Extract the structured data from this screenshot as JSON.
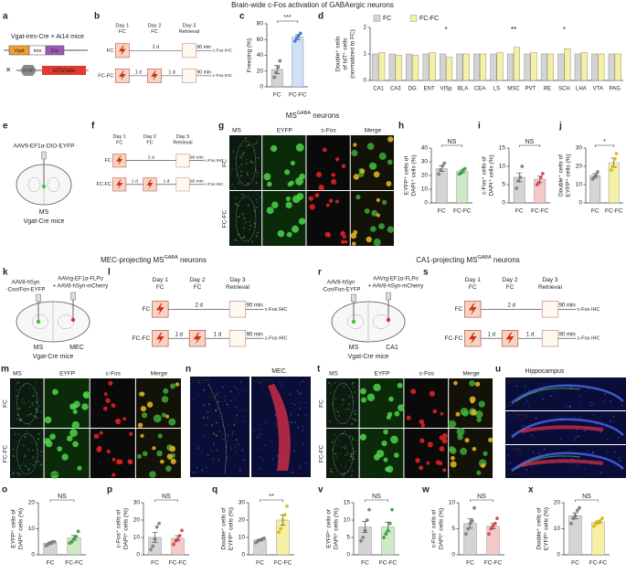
{
  "headers": [
    {
      "text": "Brain-wide c-Fos activation of GABAergic neurons"
    },
    {
      "text": "MS",
      "sup": "GABA",
      "rest": " neurons"
    },
    {
      "text": "MEC-projecting MS",
      "sup": "GABA",
      "rest": " neurons"
    },
    {
      "text": "CA1-projecting MS",
      "sup": "GABA",
      "rest": " neurons"
    }
  ],
  "schematics": {
    "a": {
      "letter": "a",
      "title": "Vgat-ires-Cre × Ai14 mice",
      "parts": [
        "Vgat",
        "ires",
        "Cre"
      ],
      "cross": "×",
      "stop": "STOP",
      "reporter": "tdTomato"
    },
    "e": {
      "letter": "e",
      "virus": [
        "AAV9-EF1α-DIO-EYFP"
      ],
      "sites": [
        "MS"
      ],
      "mice": "Vgat-Cre mice"
    },
    "k": {
      "letter": "k",
      "virus": [
        "AAV8-hSyn",
        "-Con/Fon-EYFP"
      ],
      "virus2": [
        "AAVrg-EF1α-FLPo",
        "+ AAV8-hSyn-mCherry"
      ],
      "sites": [
        "MS",
        "MEC"
      ],
      "mice": "Vgat-Cre mice"
    },
    "r": {
      "letter": "r",
      "virus": [
        "AAV8-hSyn",
        "-Con/Fon-EYFP"
      ],
      "virus2": [
        "AAVrg-EF1α-FLPo",
        "+ AAV8-hSyn-mCherry"
      ],
      "sites": [
        "MS",
        "CA1"
      ],
      "mice": "Vgat-Cre mice"
    }
  },
  "protocol_panels": [
    "b",
    "f",
    "l",
    "s"
  ],
  "protocol": {
    "days": [
      [
        "Day 1",
        "FC"
      ],
      [
        "Day 2",
        "FC"
      ],
      [
        "Day 3",
        "Retrieval"
      ]
    ],
    "groups": [
      "FC",
      "FC-FC"
    ],
    "interval": "2 d",
    "short_interval": "1 d",
    "delay": "90 min",
    "assay": "c-Fos IHC"
  },
  "micrographs": {
    "g": {
      "letter": "g",
      "columns": [
        "MS",
        "EYFP",
        "c-Fos",
        "Merge"
      ],
      "rows": [
        "FC",
        "FC-FC"
      ],
      "scales": [
        "100 μm",
        "20 μm"
      ]
    },
    "m": {
      "letter": "m",
      "columns": [
        "MS",
        "EYFP",
        "c-Fos",
        "Merge"
      ],
      "rows": [
        "FC",
        "FC-FC"
      ],
      "scales": [
        "100 μm",
        "20 μm"
      ]
    },
    "t": {
      "letter": "t",
      "columns": [
        "MS",
        "EYFP",
        "c-Fos",
        "Merge"
      ],
      "rows": [
        "FC",
        "FC-FC"
      ],
      "scales": [
        "100 μm",
        "20 μm"
      ]
    },
    "n": {
      "letter": "n",
      "title": "MEC",
      "channels": [
        "EYFP",
        "mCherry"
      ],
      "regions": [
        "cc",
        "MEC"
      ],
      "scale": "500 μm"
    },
    "u": {
      "letter": "u",
      "title": "Hippocampus",
      "channels": [
        "EYFP",
        "mCherry",
        "Merge"
      ],
      "regions": [
        "CA1",
        "DG",
        "CA3"
      ],
      "scale": "500 μm"
    }
  },
  "chart_data": [
    {
      "type": "bar",
      "letter": "c",
      "ylabel": [
        "Freezing (%)"
      ],
      "categories": [
        "FC",
        "FC-FC"
      ],
      "values": [
        22,
        63
      ],
      "errors": [
        5,
        3
      ],
      "points": [
        [
          12,
          18,
          25,
          33
        ],
        [
          58,
          62,
          65,
          68
        ]
      ],
      "colors": [
        "#d4d4d4",
        "#cfe1f7"
      ],
      "point_colors": [
        "#7a7a7a",
        "#3b78d8"
      ],
      "ylim": [
        0,
        80
      ],
      "yticks": [
        0,
        20,
        40,
        60,
        80
      ],
      "annotation": "***"
    },
    {
      "type": "grouped-bar",
      "letter": "d",
      "ylabel": [
        "Double⁺ cells",
        "of tdT⁺ cells",
        "(normalized to FC)"
      ],
      "categories": [
        "CA1",
        "CA3",
        "DG",
        "ENT",
        "VISp",
        "BLA",
        "CEA",
        "LS",
        "MSC",
        "PVT",
        "RE",
        "SCH",
        "LHA",
        "VTA",
        "PAG"
      ],
      "series": [
        {
          "name": "FC",
          "color": "#d4d4d4",
          "values": [
            1,
            1,
            1,
            1,
            1,
            1,
            1,
            1,
            1,
            1,
            1,
            1,
            1,
            1,
            1
          ]
        },
        {
          "name": "FC-FC",
          "color": "#f6f0a4",
          "values": [
            1.05,
            0.95,
            0.95,
            1.05,
            0.88,
            1.0,
            1.0,
            1.05,
            1.25,
            1.05,
            1.0,
            1.2,
            1.05,
            1.0,
            1.0
          ]
        }
      ],
      "significance": [
        null,
        null,
        null,
        null,
        "*",
        null,
        null,
        null,
        "**",
        null,
        null,
        "*",
        null,
        null,
        null
      ],
      "ylim": [
        0,
        2
      ],
      "yticks": [
        0,
        1,
        2
      ],
      "legend": "top-left"
    },
    {
      "type": "bar",
      "letter": "h",
      "ylabel": [
        "EYFP⁺ cells of",
        "DAPI⁺ cells (%)"
      ],
      "categories": [
        "FC",
        "FC-FC"
      ],
      "values": [
        25,
        23
      ],
      "errors": [
        2,
        1
      ],
      "points": [
        [
          21,
          24,
          27,
          29
        ],
        [
          21,
          22,
          24,
          25
        ]
      ],
      "colors": [
        "#d4d4d4",
        "#cde9c6"
      ],
      "point_colors": [
        "#7a7a7a",
        "#3a9a3a"
      ],
      "ylim": [
        0,
        40
      ],
      "yticks": [
        0,
        10,
        20,
        30,
        40
      ],
      "annotation": "NS"
    },
    {
      "type": "bar",
      "letter": "i",
      "ylabel": [
        "c-Fos⁺ cells of",
        "DAPI⁺ cells (%)"
      ],
      "categories": [
        "FC",
        "FC-FC"
      ],
      "values": [
        7,
        6.5
      ],
      "errors": [
        1.2,
        0.8
      ],
      "points": [
        [
          4,
          6,
          7,
          10
        ],
        [
          5,
          5.5,
          7,
          8
        ]
      ],
      "colors": [
        "#d4d4d4",
        "#f5c9c9"
      ],
      "point_colors": [
        "#7a7a7a",
        "#d04040"
      ],
      "ylim": [
        0,
        15
      ],
      "yticks": [
        0,
        5,
        10,
        15
      ],
      "annotation": "NS"
    },
    {
      "type": "bar",
      "letter": "j",
      "ylabel": [
        "Double⁺ cells of",
        "EYFP⁺ cells (%)"
      ],
      "categories": [
        "FC",
        "FC-FC"
      ],
      "values": [
        15,
        22
      ],
      "errors": [
        1,
        2.5
      ],
      "points": [
        [
          13,
          14,
          15,
          17
        ],
        [
          18,
          20,
          24,
          27
        ]
      ],
      "colors": [
        "#d4d4d4",
        "#f6f0a4"
      ],
      "point_colors": [
        "#7a7a7a",
        "#d7b800"
      ],
      "ylim": [
        0,
        30
      ],
      "yticks": [
        0,
        10,
        20,
        30
      ],
      "annotation": "*"
    },
    {
      "type": "bar",
      "letter": "o",
      "ylabel": [
        "EYFP⁺ cells of",
        "DAPI⁺ cells (%)"
      ],
      "categories": [
        "FC",
        "FC-FC"
      ],
      "values": [
        4.5,
        6.5
      ],
      "errors": [
        0.4,
        0.9
      ],
      "points": [
        [
          3.5,
          4,
          4.5,
          5,
          5
        ],
        [
          4.5,
          5,
          6,
          7,
          9
        ]
      ],
      "colors": [
        "#d4d4d4",
        "#cde9c6"
      ],
      "point_colors": [
        "#7a7a7a",
        "#3a9a3a"
      ],
      "ylim": [
        0,
        20
      ],
      "yticks": [
        0,
        10,
        20
      ],
      "annotation": "NS"
    },
    {
      "type": "bar",
      "letter": "p",
      "ylabel": [
        "c-Fos⁺ cells of",
        "DAPI⁺ cells (%)"
      ],
      "categories": [
        "FC",
        "FC-FC"
      ],
      "values": [
        10,
        9.5
      ],
      "errors": [
        3,
        1.5
      ],
      "points": [
        [
          3,
          5,
          9,
          16,
          18
        ],
        [
          6,
          8,
          9,
          11,
          14
        ]
      ],
      "colors": [
        "#d4d4d4",
        "#f5c9c9"
      ],
      "point_colors": [
        "#7a7a7a",
        "#d04040"
      ],
      "ylim": [
        0,
        30
      ],
      "yticks": [
        0,
        10,
        20,
        30
      ],
      "annotation": "NS"
    },
    {
      "type": "bar",
      "letter": "q",
      "ylabel": [
        "Double⁺ cells of",
        "EYFP⁺ cells (%)"
      ],
      "categories": [
        "FC",
        "FC-FC"
      ],
      "values": [
        8.5,
        20
      ],
      "errors": [
        0.5,
        3
      ],
      "points": [
        [
          7,
          8,
          8.5,
          9,
          9.5
        ],
        [
          13,
          15,
          20,
          23,
          28
        ]
      ],
      "colors": [
        "#d4d4d4",
        "#f6f0a4"
      ],
      "point_colors": [
        "#7a7a7a",
        "#d7b800"
      ],
      "ylim": [
        0,
        30
      ],
      "yticks": [
        0,
        10,
        20,
        30
      ],
      "annotation": "**"
    },
    {
      "type": "bar",
      "letter": "v",
      "ylabel": [
        "EYFP⁺ cells of",
        "DAPI⁺ cells (%)"
      ],
      "categories": [
        "FC",
        "FC-FC"
      ],
      "values": [
        8,
        8
      ],
      "errors": [
        1.6,
        1.4
      ],
      "points": [
        [
          4,
          5,
          7,
          10,
          13
        ],
        [
          5,
          6,
          7,
          9,
          13
        ]
      ],
      "colors": [
        "#d4d4d4",
        "#cde9c6"
      ],
      "point_colors": [
        "#7a7a7a",
        "#3a9a3a"
      ],
      "ylim": [
        0,
        15
      ],
      "yticks": [
        0,
        5,
        10,
        15
      ],
      "annotation": "NS"
    },
    {
      "type": "bar",
      "letter": "w",
      "ylabel": [
        "c-Fos⁺ cells of",
        "DAPI⁺ cells (%)"
      ],
      "categories": [
        "FC",
        "FC-FC"
      ],
      "values": [
        6,
        5.5
      ],
      "errors": [
        0.9,
        0.5
      ],
      "points": [
        [
          4,
          5,
          6,
          6.5,
          9
        ],
        [
          4,
          5,
          5.5,
          6,
          7
        ]
      ],
      "colors": [
        "#d4d4d4",
        "#f5c9c9"
      ],
      "point_colors": [
        "#7a7a7a",
        "#d04040"
      ],
      "ylim": [
        0,
        10
      ],
      "yticks": [
        0,
        5,
        10
      ],
      "annotation": "NS"
    },
    {
      "type": "bar",
      "letter": "x",
      "ylabel": [
        "Double⁺ cells of",
        "EYFP⁺ cells (%)"
      ],
      "categories": [
        "FC",
        "FC-FC"
      ],
      "values": [
        15,
        12.5
      ],
      "errors": [
        1.1,
        0.5
      ],
      "points": [
        [
          12,
          14,
          15,
          17,
          18
        ],
        [
          11,
          12,
          12.5,
          13,
          14
        ]
      ],
      "colors": [
        "#d4d4d4",
        "#f6f0a4"
      ],
      "point_colors": [
        "#7a7a7a",
        "#d7b800"
      ],
      "ylim": [
        0,
        20
      ],
      "yticks": [
        0,
        10,
        20
      ],
      "annotation": "NS"
    }
  ]
}
